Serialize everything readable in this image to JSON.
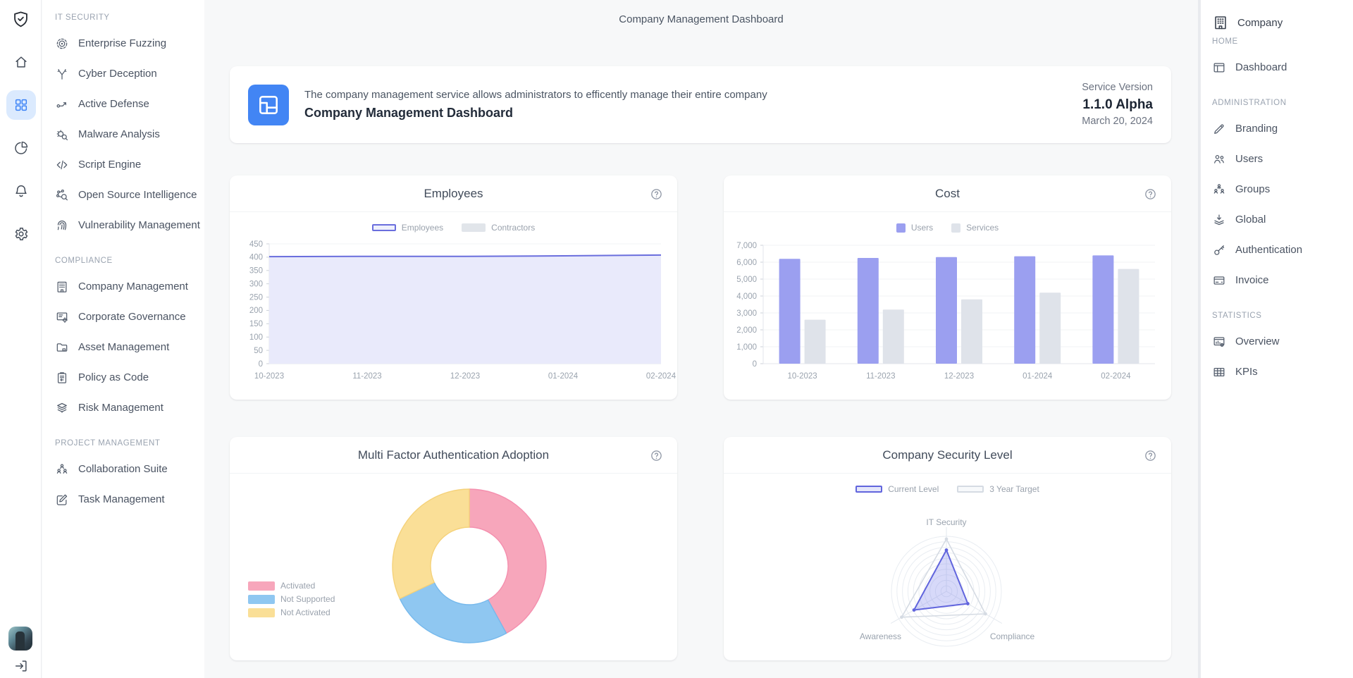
{
  "window": {
    "page_title": "Company Management Dashboard"
  },
  "colors": {
    "accent_blue": "#4285f4",
    "active_icon_bg": "#dbeafe",
    "active_icon": "#3b82f6",
    "chart_purple": "#6a6edd",
    "bar_purple": "#9b9ff0",
    "gray_series": "#dfe3ea",
    "donut_pink": "#f7a6bb",
    "donut_blue": "#8fc7f1",
    "donut_yellow": "#fadf97"
  },
  "rail": {
    "logo_icon": "shield-check-icon",
    "items": [
      {
        "icon": "home-icon",
        "active": false
      },
      {
        "icon": "grid-icon",
        "active": true
      },
      {
        "icon": "pie-chart-icon",
        "active": false
      },
      {
        "icon": "bell-icon",
        "active": false
      },
      {
        "icon": "gear-icon",
        "active": false
      }
    ],
    "logout_icon": "logout-icon"
  },
  "sidebar": {
    "sections": [
      {
        "label": "IT SECURITY",
        "items": [
          {
            "icon": "target-icon",
            "label": "Enterprise Fuzzing"
          },
          {
            "icon": "branch-icon",
            "label": "Cyber Deception"
          },
          {
            "icon": "flow-arrow-icon",
            "label": "Active Defense"
          },
          {
            "icon": "bug-search-icon",
            "label": "Malware Analysis"
          },
          {
            "icon": "code-icon",
            "label": "Script Engine"
          },
          {
            "icon": "network-search-icon",
            "label": "Open Source Intelligence"
          },
          {
            "icon": "fingerprint-icon",
            "label": "Vulnerability Management"
          }
        ]
      },
      {
        "label": "COMPLIANCE",
        "items": [
          {
            "icon": "building-icon",
            "label": "Company Management"
          },
          {
            "icon": "list-gear-icon",
            "label": "Corporate Governance"
          },
          {
            "icon": "folder-icon",
            "label": "Asset Management"
          },
          {
            "icon": "clipboard-icon",
            "label": "Policy as Code"
          },
          {
            "icon": "layers-icon",
            "label": "Risk Management"
          }
        ]
      },
      {
        "label": "PROJECT MANAGEMENT",
        "items": [
          {
            "icon": "people-group-icon",
            "label": "Collaboration Suite"
          },
          {
            "icon": "edit-square-icon",
            "label": "Task Management"
          }
        ]
      }
    ]
  },
  "banner": {
    "icon": "dashboard-layout-icon",
    "description": "The company management service allows administrators to efficently manage their entire company",
    "title": "Company Management Dashboard",
    "version_label": "Service Version",
    "version": "1.1.0 Alpha",
    "date": "March 20, 2024"
  },
  "right_sidebar": {
    "company_label": "Company",
    "company_icon": "building-icon",
    "sections": [
      {
        "label": "HOME",
        "items": [
          {
            "icon": "window-icon",
            "label": "Dashboard"
          }
        ]
      },
      {
        "label": "ADMINISTRATION",
        "items": [
          {
            "icon": "pencil-icon",
            "label": "Branding"
          },
          {
            "icon": "users-icon",
            "label": "Users"
          },
          {
            "icon": "groups-icon",
            "label": "Groups"
          },
          {
            "icon": "global-icon",
            "label": "Global"
          },
          {
            "icon": "key-icon",
            "label": "Authentication"
          },
          {
            "icon": "credit-card-icon",
            "label": "Invoice"
          }
        ]
      },
      {
        "label": "STATISTICS",
        "items": [
          {
            "icon": "chart-window-icon",
            "label": "Overview"
          },
          {
            "icon": "table-icon",
            "label": "KPIs"
          }
        ]
      }
    ]
  },
  "chart_data": [
    {
      "type": "area",
      "title": "Employees",
      "x": [
        "10-2023",
        "11-2023",
        "12-2023",
        "01-2024",
        "02-2024"
      ],
      "series": [
        {
          "name": "Employees",
          "values": [
            402,
            403,
            403,
            405,
            408
          ],
          "color": "#6a6edd",
          "fill": "#e9eafb",
          "legend": "outline",
          "legend_fill": "#eef0fc"
        },
        {
          "name": "Contractors",
          "values": [
            12,
            12,
            13,
            14,
            15
          ],
          "color": "#cfd5dd",
          "fill": "rgba(222,227,233,0.45)",
          "legend": "solid",
          "legend_fill": "#e1e5ea"
        }
      ],
      "ylim": [
        0,
        450
      ],
      "ytick_step": 50,
      "grid": true,
      "legend_position": "top"
    },
    {
      "type": "bar",
      "title": "Cost",
      "x": [
        "10-2023",
        "11-2023",
        "12-2023",
        "01-2024",
        "02-2024"
      ],
      "series": [
        {
          "name": "Users",
          "values": [
            6200,
            6250,
            6300,
            6350,
            6400
          ],
          "color": "#9b9ff0"
        },
        {
          "name": "Services",
          "values": [
            2600,
            3200,
            3800,
            4200,
            5600
          ],
          "color": "#dfe3ea"
        }
      ],
      "ylim": [
        0,
        7000
      ],
      "ytick_step": 1000,
      "grid": true,
      "legend_position": "top"
    },
    {
      "type": "pie",
      "title": "Multi Factor Authentication Adoption",
      "donut": true,
      "labels": [
        "Activated",
        "Not Supported",
        "Not Activated"
      ],
      "values": [
        42,
        26,
        32
      ],
      "colors": [
        "#f7a6bb",
        "#8fc7f1",
        "#fadf97"
      ],
      "border_colors": [
        "#f48fae",
        "#76b9ec",
        "#f5d27a"
      ],
      "legend_position": "left"
    },
    {
      "type": "radar",
      "title": "Company Security Level",
      "axes": [
        "IT Security",
        "Compliance",
        "Awareness"
      ],
      "max": 100,
      "series": [
        {
          "name": "Current Level",
          "values": [
            75,
            45,
            68
          ],
          "color": "#6165dd",
          "fill": "rgba(124,128,234,0.30)",
          "legend_fill": "#e4e6fa"
        },
        {
          "name": "3 Year Target",
          "values": [
            95,
            82,
            94
          ],
          "color": "#d5dbe3",
          "fill": "none",
          "legend_fill": "#f7f9fb"
        }
      ],
      "legend_position": "top"
    }
  ]
}
